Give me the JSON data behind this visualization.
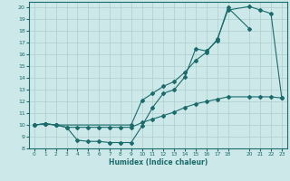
{
  "xlabel": "Humidex (Indice chaleur)",
  "ylabel": "",
  "xlim": [
    -0.5,
    23.5
  ],
  "ylim": [
    8,
    20.5
  ],
  "xticks": [
    0,
    1,
    2,
    3,
    4,
    5,
    6,
    7,
    8,
    9,
    10,
    11,
    12,
    13,
    14,
    15,
    16,
    17,
    18,
    20,
    21,
    22,
    23
  ],
  "yticks": [
    8,
    9,
    10,
    11,
    12,
    13,
    14,
    15,
    16,
    17,
    18,
    19,
    20
  ],
  "bg_color": "#cde8e8",
  "line_color": "#1a6b6b",
  "grid_color": "#aecece",
  "line1_x": [
    0,
    1,
    2,
    3,
    4,
    5,
    6,
    7,
    8,
    9,
    10,
    11,
    12,
    13,
    14,
    15,
    16,
    17,
    18,
    20
  ],
  "line1_y": [
    10,
    10.1,
    10.0,
    9.8,
    8.7,
    8.6,
    8.6,
    8.5,
    8.5,
    8.5,
    9.9,
    11.5,
    12.7,
    13.0,
    14.1,
    16.5,
    16.3,
    17.2,
    20.0,
    18.2
  ],
  "line2_x": [
    0,
    1,
    2,
    9,
    10,
    11,
    12,
    13,
    14,
    15,
    16,
    17,
    18,
    20,
    21,
    22,
    23
  ],
  "line2_y": [
    10,
    10.1,
    10.0,
    10.0,
    12.1,
    12.7,
    13.3,
    13.7,
    14.5,
    15.5,
    16.2,
    17.3,
    19.8,
    20.1,
    19.8,
    19.5,
    12.3
  ],
  "line3_x": [
    0,
    1,
    2,
    3,
    4,
    5,
    6,
    7,
    8,
    9,
    10,
    11,
    12,
    13,
    14,
    15,
    16,
    17,
    18,
    20,
    21,
    22,
    23
  ],
  "line3_y": [
    10,
    10.1,
    10.0,
    9.8,
    9.8,
    9.8,
    9.8,
    9.8,
    9.8,
    9.8,
    10.2,
    10.5,
    10.8,
    11.1,
    11.5,
    11.8,
    12.0,
    12.2,
    12.4,
    12.4,
    12.4,
    12.4,
    12.3
  ]
}
